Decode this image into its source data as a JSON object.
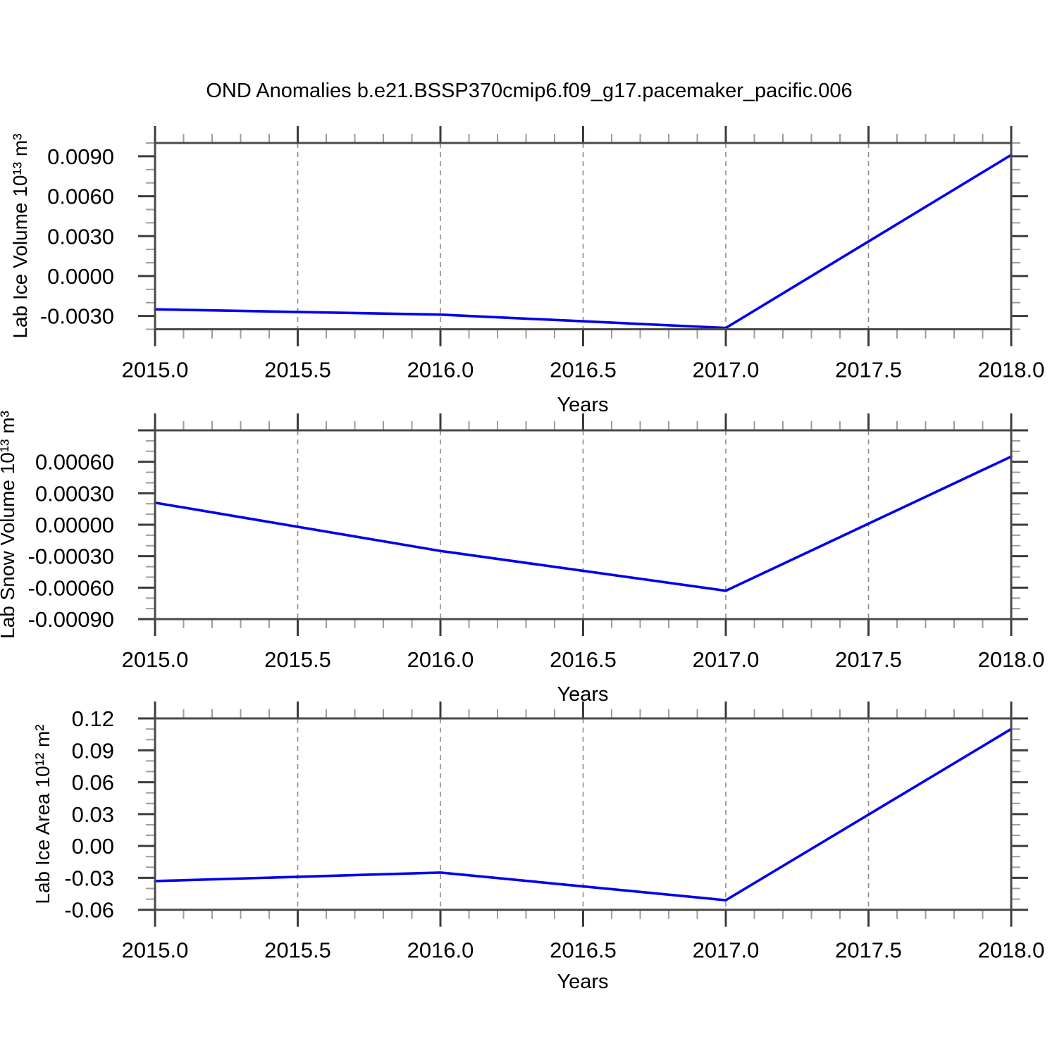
{
  "title": "OND Anomalies b.e21.BSSP370cmip6.f09_g17.pacemaker_pacific.006",
  "colors": {
    "line": "#0000ee",
    "axis": "#4a4a4a",
    "major_tick": "#3c3c3c",
    "minor_tick": "#9c9c9c",
    "grid": "#8a8a8a",
    "text": "#000000",
    "background": "#ffffff"
  },
  "chart_data": [
    {
      "type": "line",
      "ylabel": "Lab Ice Volume 10¹³ m³",
      "xlabel": "Years",
      "x": [
        2015.0,
        2016.0,
        2017.0,
        2018.0
      ],
      "values": [
        -0.0025,
        -0.0029,
        -0.0039,
        0.0091
      ],
      "xlim": [
        2015.0,
        2018.0
      ],
      "ylim": [
        -0.004,
        0.01
      ],
      "xticks": {
        "values": [
          2015.0,
          2015.5,
          2016.0,
          2016.5,
          2017.0,
          2017.5,
          2018.0
        ],
        "labels": [
          "2015.0",
          "2015.5",
          "2016.0",
          "2016.5",
          "2017.0",
          "2017.5",
          "2018.0"
        ],
        "minor_step": 0.1,
        "major_step": 0.5
      },
      "yticks": {
        "values": [
          0.009,
          0.006,
          0.003,
          0.0,
          -0.003
        ],
        "labels": [
          "0.0090",
          "0.0060",
          "0.0030",
          "0.0000",
          "-0.0030"
        ],
        "minor_step": 0.001,
        "major_step": 0.003
      },
      "grid_x": [
        2015.5,
        2016.0,
        2016.5,
        2017.0,
        2017.5
      ],
      "grid_on": "vertical-dashed-only",
      "legend": "none"
    },
    {
      "type": "line",
      "ylabel": "Lab Snow Volume 10¹³ m³",
      "xlabel": "Years",
      "x": [
        2015.0,
        2016.0,
        2017.0,
        2018.0
      ],
      "values": [
        0.00021,
        -0.00025,
        -0.00063,
        0.00065
      ],
      "xlim": [
        2015.0,
        2018.0
      ],
      "ylim": [
        -0.0009,
        0.0009
      ],
      "xticks": {
        "values": [
          2015.0,
          2015.5,
          2016.0,
          2016.5,
          2017.0,
          2017.5,
          2018.0
        ],
        "labels": [
          "2015.0",
          "2015.5",
          "2016.0",
          "2016.5",
          "2017.0",
          "2017.5",
          "2018.0"
        ],
        "minor_step": 0.1,
        "major_step": 0.5
      },
      "yticks": {
        "values": [
          0.0006,
          0.0003,
          0.0,
          -0.0003,
          -0.0006,
          -0.0009
        ],
        "labels": [
          "0.00060",
          "0.00030",
          "0.00000",
          "-0.00030",
          "-0.00060",
          "-0.00090"
        ],
        "minor_step": 0.0001,
        "major_step": 0.0003
      },
      "grid_x": [
        2015.5,
        2016.0,
        2016.5,
        2017.0,
        2017.5
      ],
      "grid_on": "vertical-dashed-only",
      "legend": "none"
    },
    {
      "type": "line",
      "ylabel": "Lab Ice Area 10¹² m²",
      "xlabel": "Years",
      "x": [
        2015.0,
        2016.0,
        2017.0,
        2018.0
      ],
      "values": [
        -0.033,
        -0.025,
        -0.051,
        0.11
      ],
      "xlim": [
        2015.0,
        2018.0
      ],
      "ylim": [
        -0.06,
        0.12
      ],
      "xticks": {
        "values": [
          2015.0,
          2015.5,
          2016.0,
          2016.5,
          2017.0,
          2017.5,
          2018.0
        ],
        "labels": [
          "2015.0",
          "2015.5",
          "2016.0",
          "2016.5",
          "2017.0",
          "2017.5",
          "2018.0"
        ],
        "minor_step": 0.1,
        "major_step": 0.5
      },
      "yticks": {
        "values": [
          0.12,
          0.09,
          0.06,
          0.03,
          0.0,
          -0.03,
          -0.06
        ],
        "labels": [
          "0.12",
          "0.09",
          "0.06",
          "0.03",
          "0.00",
          "-0.03",
          "-0.06"
        ],
        "minor_step": 0.01,
        "major_step": 0.03
      },
      "grid_x": [
        2015.5,
        2016.0,
        2016.5,
        2017.0,
        2017.5
      ],
      "grid_on": "vertical-dashed-only",
      "legend": "none"
    }
  ]
}
